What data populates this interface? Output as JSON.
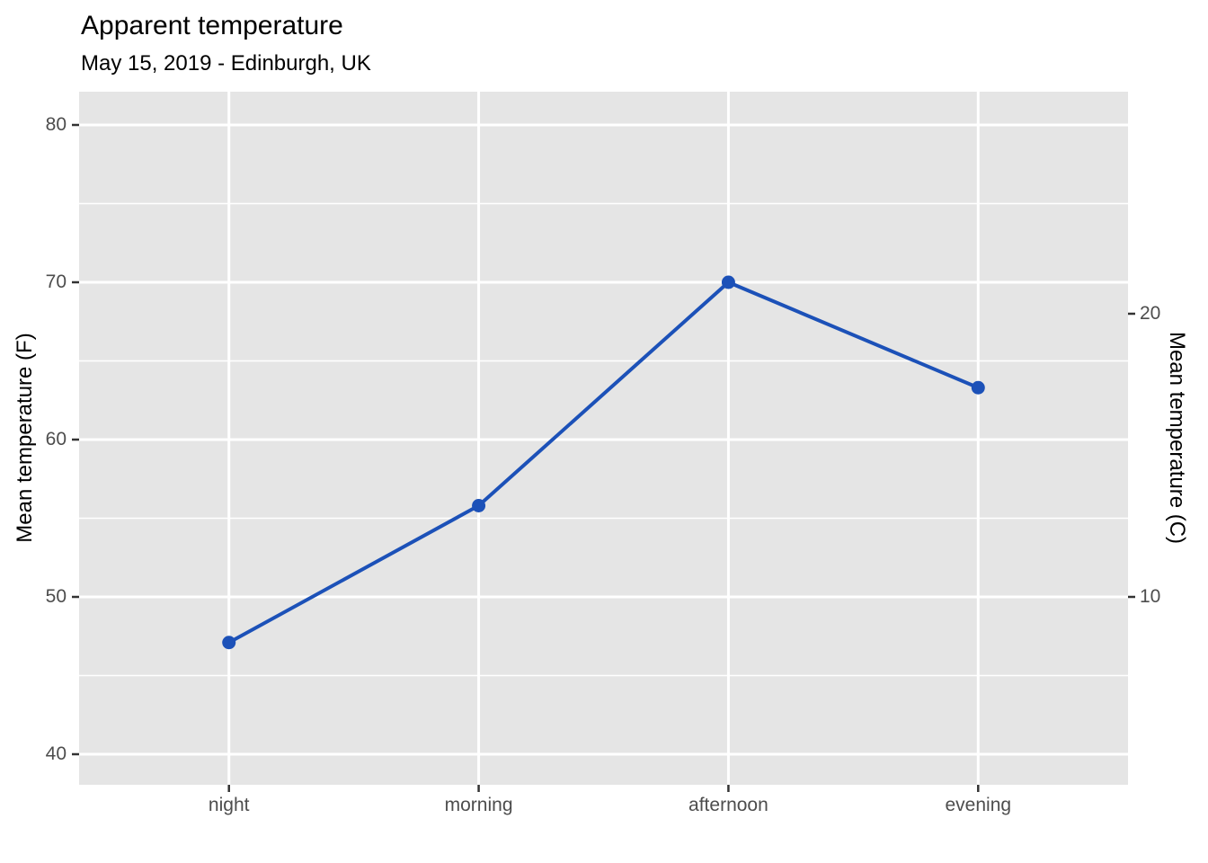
{
  "header": {
    "title": "Apparent temperature",
    "subtitle": "May 15, 2019 - Edinburgh, UK"
  },
  "chart_data": {
    "type": "line",
    "title": "Apparent temperature",
    "subtitle": "May 15, 2019 - Edinburgh, UK",
    "categories": [
      "night",
      "morning",
      "afternoon",
      "evening"
    ],
    "series": [
      {
        "name": "apparent temperature (F)",
        "values": [
          47.1,
          55.8,
          70.0,
          63.3
        ]
      }
    ],
    "xlabel": "",
    "ylabel_left": "Mean temperature (F)",
    "ylabel_right": "Mean temperature (C)",
    "ylim_F": [
      38.1,
      82.1
    ],
    "y_ticks_F": [
      40,
      50,
      60,
      70,
      80
    ],
    "y_minor_ticks_F": [
      45,
      55,
      65,
      75
    ],
    "right_ticks_C": [
      10,
      20
    ],
    "legend_position": "none",
    "grid": true,
    "colors": {
      "line": "#1C51B8",
      "point": "#1C51B8",
      "panel_bg": "#E5E5E5",
      "grid_major": "#FFFFFF",
      "grid_minor": "#FFFFFF",
      "tick_mark": "#333333",
      "tick_text": "#4D4D4D",
      "title_text": "#000000"
    }
  }
}
